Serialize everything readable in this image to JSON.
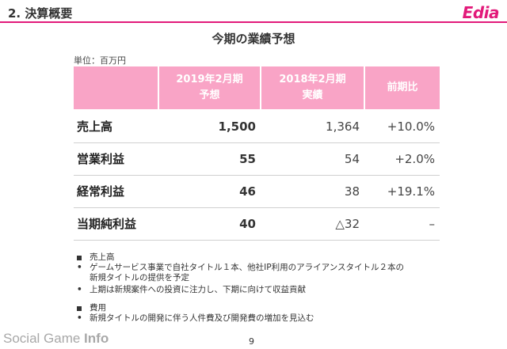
{
  "header": {
    "title": "2. 決算概要",
    "logo": "Edia",
    "accent": "#e21a7a"
  },
  "main_title": "今期の業績予想",
  "unit": "単位：百万円",
  "table": {
    "header_color": "#f9a4c6",
    "columns": [
      {
        "line1": "2019年2月期",
        "line2": "予想"
      },
      {
        "line1": "2018年2月期",
        "line2": "実績"
      },
      {
        "line1": "前期比",
        "line2": ""
      }
    ],
    "rows": [
      {
        "label": "売上高",
        "forecast": "1,500",
        "actual": "1,364",
        "ratio": "+10.0%"
      },
      {
        "label": "営業利益",
        "forecast": "55",
        "actual": "54",
        "ratio": "+2.0%"
      },
      {
        "label": "経常利益",
        "forecast": "46",
        "actual": "38",
        "ratio": "+19.1%"
      },
      {
        "label": "当期純利益",
        "forecast": "40",
        "actual": "△32",
        "ratio": "–"
      }
    ]
  },
  "notes": [
    {
      "heading": "売上高",
      "bullets": [
        {
          "line1": "ゲームサービス事業で自社タイトル１本、他社IP利用のアライアンスタイトル２本の",
          "line2": "新規タイトルの提供を予定"
        },
        {
          "line1": "上期は新規案件への投資に注力し、下期に向けて収益貢献",
          "line2": ""
        }
      ]
    },
    {
      "heading": "費用",
      "bullets": [
        {
          "line1": "新規タイトルの開発に伴う人件費及び開発費の増加を見込む",
          "line2": ""
        }
      ]
    }
  ],
  "watermark": {
    "part1": "Social Game ",
    "part2": "Info"
  },
  "page_number": "9"
}
